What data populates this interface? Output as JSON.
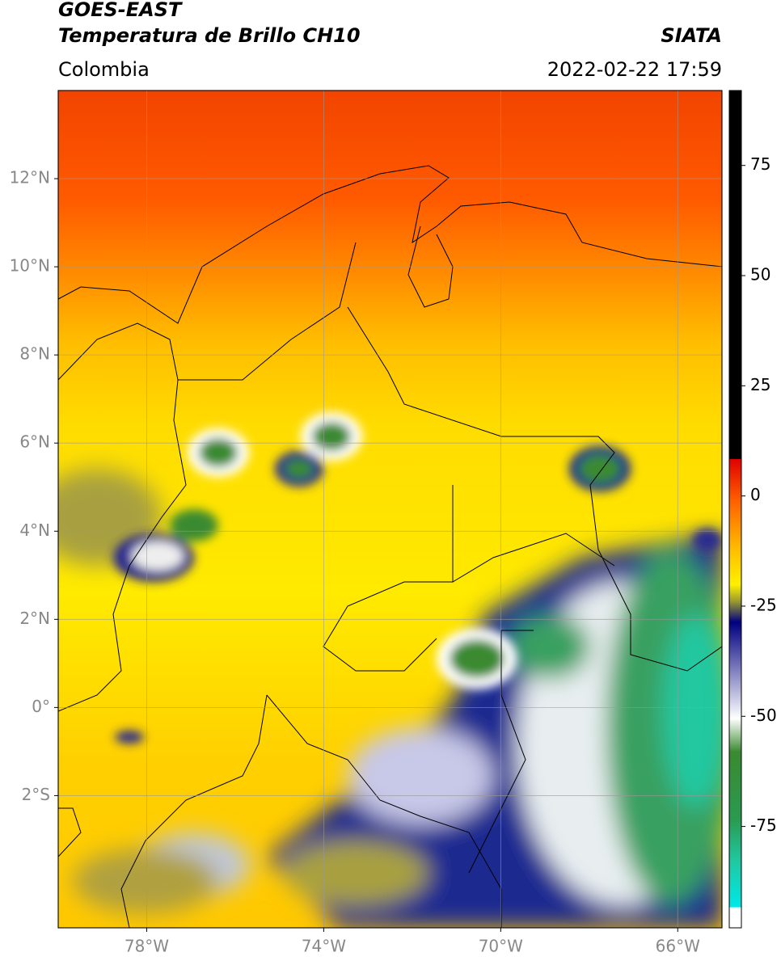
{
  "header": {
    "satellite": "GOES-EAST",
    "product": "Temperatura de Brillo CH10",
    "source": "SIATA",
    "region": "Colombia",
    "datetime": "2022-02-22 17:59"
  },
  "map": {
    "latlim": [
      -5,
      14
    ],
    "lonlim": [
      -80,
      -65
    ],
    "lat_ticks": [
      {
        "value": 12,
        "label": "12°N"
      },
      {
        "value": 10,
        "label": "10°N"
      },
      {
        "value": 8,
        "label": "8°N"
      },
      {
        "value": 6,
        "label": "6°N"
      },
      {
        "value": 4,
        "label": "4°N"
      },
      {
        "value": 2,
        "label": "2°N"
      },
      {
        "value": 0,
        "label": "0°"
      },
      {
        "value": -2,
        "label": "2°S"
      }
    ],
    "lon_ticks": [
      {
        "value": -78,
        "label": "78°W"
      },
      {
        "value": -74,
        "label": "74°W"
      },
      {
        "value": -70,
        "label": "70°W"
      },
      {
        "value": -66,
        "label": "66°W"
      }
    ]
  },
  "colorbar": {
    "lim": [
      -98,
      92
    ],
    "ticks": [
      75,
      50,
      25,
      0,
      -25,
      -50,
      -75
    ]
  }
}
